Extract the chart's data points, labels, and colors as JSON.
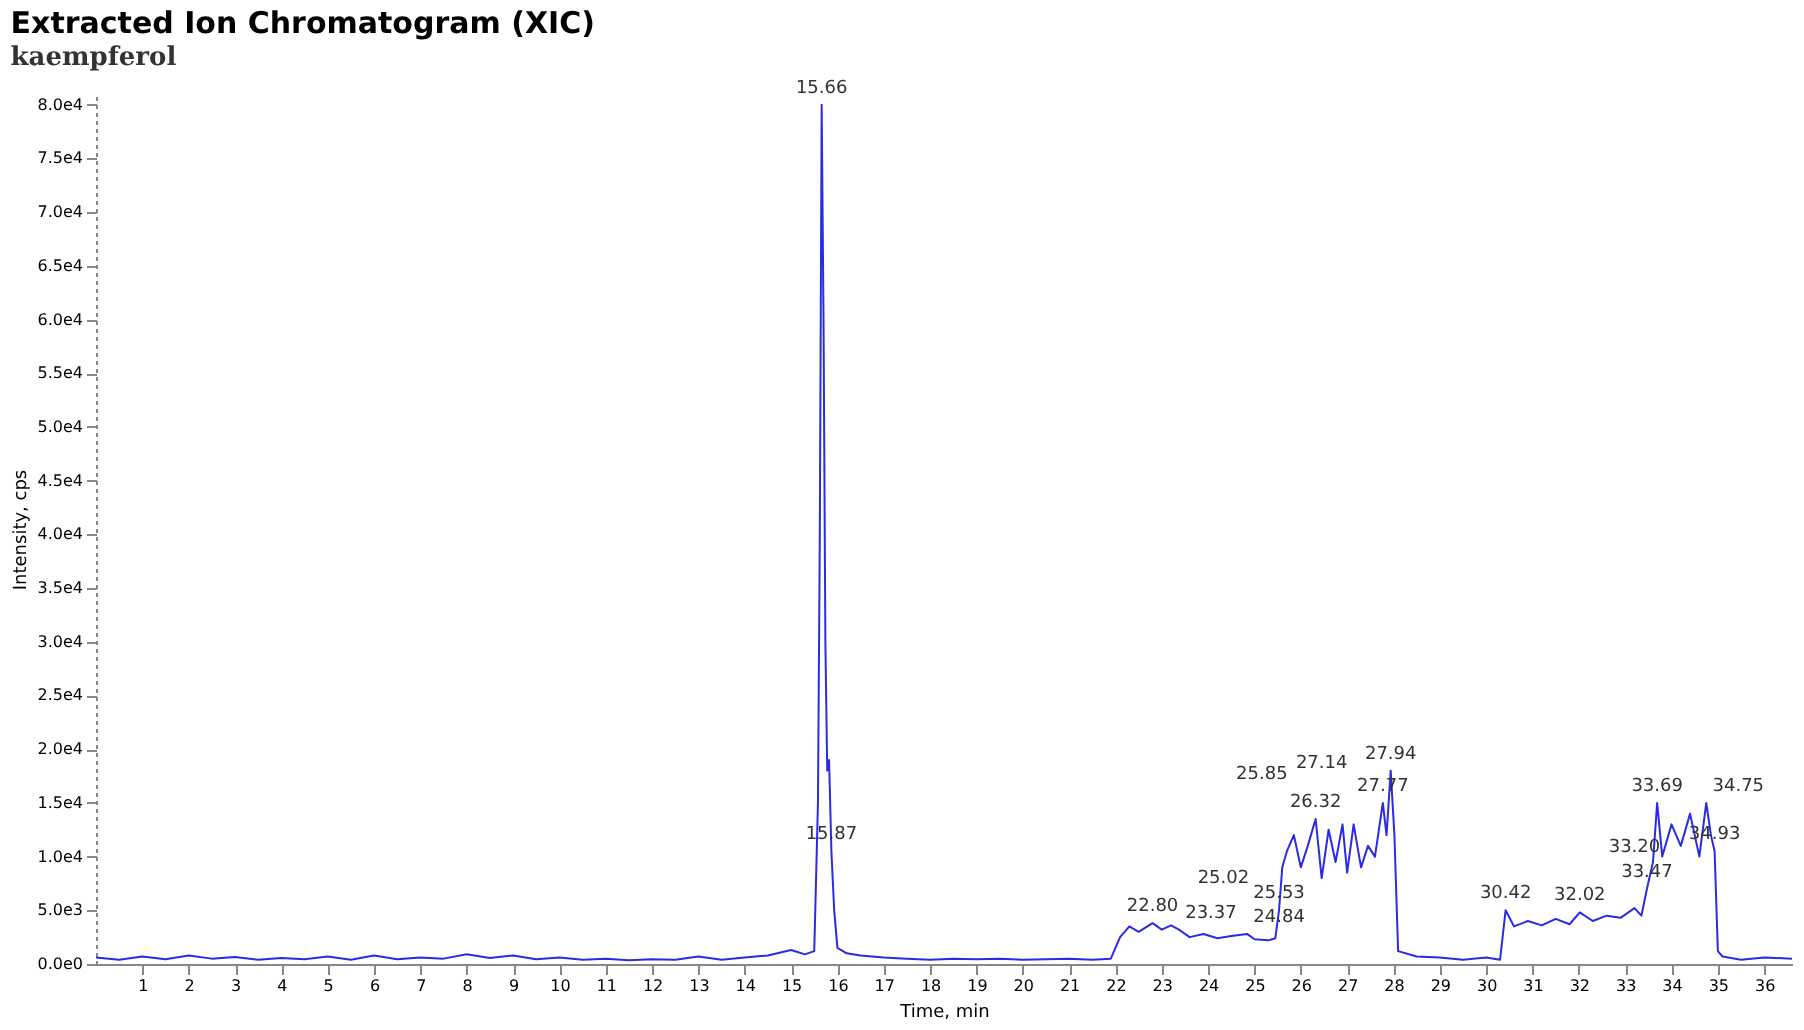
{
  "chart_data": {
    "type": "line",
    "title": "Extracted Ion Chromatogram (XIC)",
    "subtitle": "kaempferol",
    "xlabel": "Time, min",
    "ylabel": "Intensity, cps",
    "x": [
      0,
      0.5,
      1,
      1.5,
      2,
      2.5,
      3,
      3.5,
      4,
      4.5,
      5,
      5.5,
      6,
      6.5,
      7,
      7.5,
      8,
      8.5,
      9,
      9.5,
      10,
      10.5,
      11,
      11.5,
      12,
      12.5,
      13,
      13.5,
      14,
      14.5,
      15,
      15.3,
      15.5,
      15.58,
      15.62,
      15.66,
      15.7,
      15.74,
      15.78,
      15.82,
      15.87,
      15.93,
      16,
      16.2,
      16.5,
      17,
      17.5,
      18,
      18.5,
      19,
      19.5,
      20,
      20.5,
      21,
      21.5,
      21.9,
      22.1,
      22.3,
      22.5,
      22.8,
      23,
      23.2,
      23.37,
      23.6,
      23.9,
      24.2,
      24.5,
      24.84,
      25,
      25.3,
      25.45,
      25.53,
      25.6,
      25.7,
      25.85,
      26,
      26.15,
      26.32,
      26.45,
      26.6,
      26.75,
      26.9,
      27,
      27.14,
      27.3,
      27.45,
      27.6,
      27.77,
      27.85,
      27.94,
      28.02,
      28.1,
      28.5,
      29,
      29.5,
      30,
      30.3,
      30.42,
      30.6,
      30.9,
      31.2,
      31.5,
      31.8,
      32.02,
      32.3,
      32.6,
      32.9,
      33.2,
      33.35,
      33.47,
      33.6,
      33.69,
      33.8,
      34,
      34.2,
      34.4,
      34.6,
      34.75,
      34.85,
      34.93,
      35,
      35.1,
      35.5,
      36,
      36.6
    ],
    "values": [
      600,
      400,
      700,
      450,
      800,
      500,
      650,
      400,
      550,
      450,
      700,
      400,
      800,
      450,
      600,
      500,
      900,
      550,
      800,
      450,
      600,
      400,
      500,
      350,
      450,
      400,
      700,
      400,
      600,
      800,
      1300,
      900,
      1200,
      15000,
      40000,
      80000,
      60000,
      30000,
      18000,
      19000,
      10500,
      5000,
      1500,
      1000,
      800,
      600,
      500,
      400,
      500,
      450,
      500,
      400,
      450,
      500,
      400,
      500,
      2500,
      3500,
      3000,
      3800,
      3200,
      3600,
      3200,
      2500,
      2800,
      2400,
      2600,
      2800,
      2300,
      2200,
      2400,
      5000,
      9000,
      10500,
      12000,
      9000,
      11000,
      13500,
      8000,
      12500,
      9500,
      13000,
      8500,
      13000,
      9000,
      11000,
      10000,
      15000,
      12000,
      18000,
      12000,
      1200,
      700,
      600,
      400,
      600,
      400,
      5000,
      3500,
      4000,
      3600,
      4200,
      3700,
      4800,
      4000,
      4500,
      4300,
      5200,
      4500,
      7000,
      9500,
      15000,
      10000,
      13000,
      11000,
      14000,
      10000,
      15000,
      12000,
      10500,
      1200,
      700,
      400,
      600,
      500
    ],
    "color": "#2b2be6",
    "marker": "none",
    "line_style": "solid",
    "grid": false,
    "xlim": [
      0,
      36.6
    ],
    "xticks": [
      1,
      2,
      3,
      4,
      5,
      6,
      7,
      8,
      9,
      10,
      11,
      12,
      13,
      14,
      15,
      16,
      17,
      18,
      19,
      20,
      21,
      22,
      23,
      24,
      25,
      26,
      27,
      28,
      29,
      30,
      31,
      32,
      33,
      34,
      35,
      36
    ],
    "ylim": [
      0,
      81000
    ],
    "yticks": [
      {
        "value": 0,
        "label": "0.0e0"
      },
      {
        "value": 5000,
        "label": "5.0e3"
      },
      {
        "value": 10000,
        "label": "1.0e4"
      },
      {
        "value": 15000,
        "label": "1.5e4"
      },
      {
        "value": 20000,
        "label": "2.0e4"
      },
      {
        "value": 25000,
        "label": "2.5e4"
      },
      {
        "value": 30000,
        "label": "3.0e4"
      },
      {
        "value": 35000,
        "label": "3.5e4"
      },
      {
        "value": 40000,
        "label": "4.0e4"
      },
      {
        "value": 45000,
        "label": "4.5e4"
      },
      {
        "value": 50000,
        "label": "5.0e4"
      },
      {
        "value": 55000,
        "label": "5.5e4"
      },
      {
        "value": 60000,
        "label": "6.0e4"
      },
      {
        "value": 65000,
        "label": "6.5e4"
      },
      {
        "value": 70000,
        "label": "7.0e4"
      },
      {
        "value": 75000,
        "label": "7.5e4"
      },
      {
        "value": 80000,
        "label": "8.0e4"
      }
    ],
    "annotations": [
      {
        "text": "15.66",
        "x": 15.66,
        "y": 80000
      },
      {
        "text": "15.87",
        "x": 15.87,
        "y": 10500
      },
      {
        "text": "22.80",
        "x": 22.8,
        "y": 3800
      },
      {
        "text": "23.37",
        "x": 23.37,
        "y": 3200
      },
      {
        "text": "24.84",
        "x": 24.84,
        "y": 2800
      },
      {
        "text": "25.53",
        "x": 25.53,
        "y": 5000
      },
      {
        "text": "25.02",
        "x": 25.02,
        "y": 2300
      },
      {
        "text": "25.85",
        "x": 25.85,
        "y": 12000
      },
      {
        "text": "26.32",
        "x": 26.32,
        "y": 13500
      },
      {
        "text": "27.14",
        "x": 27.14,
        "y": 13000
      },
      {
        "text": "27.94",
        "x": 27.94,
        "y": 18000
      },
      {
        "text": "27.77",
        "x": 27.77,
        "y": 15000
      },
      {
        "text": "30.42",
        "x": 30.42,
        "y": 5000
      },
      {
        "text": "32.02",
        "x": 32.02,
        "y": 4800
      },
      {
        "text": "33.20",
        "x": 33.2,
        "y": 5200
      },
      {
        "text": "33.47",
        "x": 33.47,
        "y": 7000
      },
      {
        "text": "33.69",
        "x": 33.69,
        "y": 15000
      },
      {
        "text": "34.75",
        "x": 34.75,
        "y": 15000
      },
      {
        "text": "34.93",
        "x": 34.93,
        "y": 10500
      }
    ]
  }
}
